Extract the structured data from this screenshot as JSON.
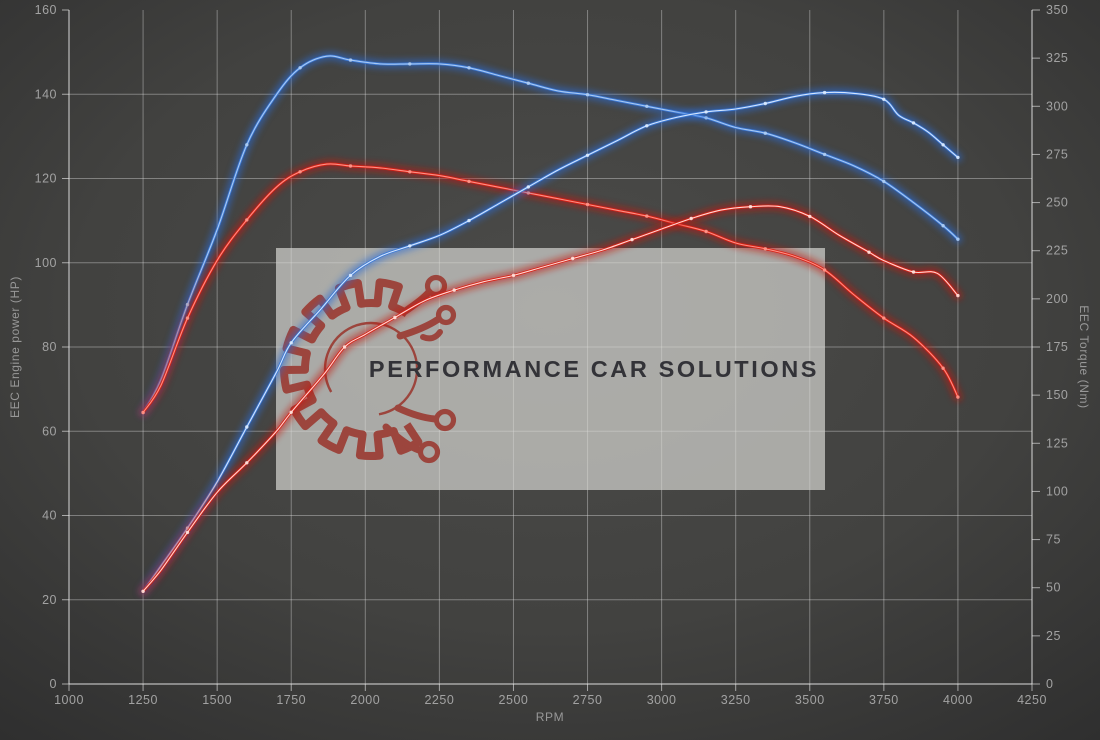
{
  "chart_data": {
    "type": "line",
    "title": "",
    "xlabel": "RPM",
    "grid": "on",
    "legend": "none",
    "axes": {
      "x": {
        "label": "RPM",
        "min": 1000,
        "max": 4250,
        "tick_step": 250,
        "ticks": [
          1000,
          1250,
          1500,
          1750,
          2000,
          2250,
          2500,
          2750,
          3000,
          3250,
          3500,
          3750,
          4000,
          4250
        ]
      },
      "left": {
        "label": "EEC Engine power (HP)",
        "min": 0,
        "max": 160,
        "tick_step": 20,
        "ticks": [
          0,
          20,
          40,
          60,
          80,
          100,
          120,
          140,
          160
        ]
      },
      "right": {
        "label": "EEC Torque (Nm)",
        "min": 0,
        "max": 350,
        "tick_step": 25,
        "ticks": [
          0,
          25,
          50,
          75,
          100,
          125,
          150,
          175,
          200,
          225,
          250,
          275,
          300,
          325,
          350
        ]
      }
    },
    "series": [
      {
        "id": "torque-blue",
        "kind": "torque",
        "axis": "right",
        "unit": "Nm",
        "color": "#3b79d6",
        "glow": "#2c6cd6",
        "core": "#aecdf4",
        "points": [
          [
            1250,
            141
          ],
          [
            1310,
            158
          ],
          [
            1400,
            197
          ],
          [
            1500,
            236
          ],
          [
            1600,
            280
          ],
          [
            1700,
            306
          ],
          [
            1780,
            320
          ],
          [
            1870,
            326
          ],
          [
            1950,
            324
          ],
          [
            2050,
            322
          ],
          [
            2150,
            322
          ],
          [
            2250,
            322
          ],
          [
            2350,
            320
          ],
          [
            2450,
            316
          ],
          [
            2550,
            312
          ],
          [
            2650,
            308
          ],
          [
            2750,
            306
          ],
          [
            2850,
            303
          ],
          [
            2950,
            300
          ],
          [
            3050,
            297
          ],
          [
            3150,
            294
          ],
          [
            3250,
            289
          ],
          [
            3350,
            286
          ],
          [
            3450,
            281
          ],
          [
            3550,
            275
          ],
          [
            3650,
            269
          ],
          [
            3750,
            261
          ],
          [
            3850,
            250
          ],
          [
            3950,
            238
          ],
          [
            4000,
            231
          ]
        ]
      },
      {
        "id": "torque-red",
        "kind": "torque",
        "axis": "right",
        "unit": "Nm",
        "color": "#da1f14",
        "glow": "#c41208",
        "core": "#ff968a",
        "points": [
          [
            1250,
            141
          ],
          [
            1310,
            155
          ],
          [
            1400,
            190
          ],
          [
            1500,
            220
          ],
          [
            1600,
            241
          ],
          [
            1700,
            258
          ],
          [
            1780,
            266
          ],
          [
            1870,
            270
          ],
          [
            1950,
            269
          ],
          [
            2050,
            268
          ],
          [
            2150,
            266
          ],
          [
            2250,
            264
          ],
          [
            2350,
            261
          ],
          [
            2450,
            258
          ],
          [
            2550,
            255
          ],
          [
            2650,
            252
          ],
          [
            2750,
            249
          ],
          [
            2850,
            246
          ],
          [
            2950,
            243
          ],
          [
            3050,
            239
          ],
          [
            3150,
            235
          ],
          [
            3250,
            229
          ],
          [
            3350,
            226
          ],
          [
            3450,
            222
          ],
          [
            3550,
            215
          ],
          [
            3650,
            202
          ],
          [
            3750,
            190
          ],
          [
            3850,
            180
          ],
          [
            3950,
            164
          ],
          [
            4000,
            149
          ]
        ]
      },
      {
        "id": "power-blue",
        "kind": "power",
        "axis": "left",
        "unit": "HP",
        "color": "#3b79d6",
        "glow": "#2c6cd6",
        "core": "#dcebff",
        "points": [
          [
            1250,
            22
          ],
          [
            1310,
            28
          ],
          [
            1400,
            37
          ],
          [
            1500,
            48
          ],
          [
            1600,
            61
          ],
          [
            1700,
            74
          ],
          [
            1750,
            81
          ],
          [
            1850,
            89
          ],
          [
            1950,
            97
          ],
          [
            2050,
            101.5
          ],
          [
            2150,
            104
          ],
          [
            2250,
            106.5
          ],
          [
            2350,
            110
          ],
          [
            2450,
            114
          ],
          [
            2550,
            118
          ],
          [
            2650,
            122
          ],
          [
            2750,
            125.5
          ],
          [
            2850,
            129
          ],
          [
            2950,
            132.5
          ],
          [
            3050,
            134.5
          ],
          [
            3150,
            135.8
          ],
          [
            3250,
            136.5
          ],
          [
            3350,
            137.8
          ],
          [
            3450,
            139.5
          ],
          [
            3550,
            140.4
          ],
          [
            3650,
            140.2
          ],
          [
            3750,
            138.8
          ],
          [
            3800,
            135
          ],
          [
            3850,
            133.2
          ],
          [
            3900,
            131
          ],
          [
            3950,
            128
          ],
          [
            4000,
            125
          ]
        ]
      },
      {
        "id": "power-red",
        "kind": "power",
        "axis": "left",
        "unit": "HP",
        "color": "#da1f14",
        "glow": "#c41208",
        "core": "#ffe2dd",
        "points": [
          [
            1250,
            22
          ],
          [
            1310,
            27
          ],
          [
            1400,
            36
          ],
          [
            1500,
            45.5
          ],
          [
            1600,
            52.5
          ],
          [
            1700,
            60
          ],
          [
            1750,
            64.5
          ],
          [
            1860,
            73.5
          ],
          [
            1930,
            80
          ],
          [
            2000,
            83
          ],
          [
            2100,
            87
          ],
          [
            2200,
            91
          ],
          [
            2300,
            93.5
          ],
          [
            2400,
            95.5
          ],
          [
            2500,
            97
          ],
          [
            2600,
            99
          ],
          [
            2700,
            101
          ],
          [
            2800,
            103
          ],
          [
            2900,
            105.5
          ],
          [
            3000,
            108
          ],
          [
            3100,
            110.5
          ],
          [
            3200,
            112.5
          ],
          [
            3300,
            113.3
          ],
          [
            3400,
            113.3
          ],
          [
            3500,
            111
          ],
          [
            3600,
            106.5
          ],
          [
            3700,
            102.5
          ],
          [
            3750,
            100.5
          ],
          [
            3850,
            97.8
          ],
          [
            3930,
            97.5
          ],
          [
            4000,
            92.2
          ]
        ]
      }
    ]
  },
  "watermark": {
    "text": "PERFORMANCE CAR SOLUTIONS",
    "logo_icon": "gear-circuit-icon",
    "box_color": "rgba(218,218,213,0.68)",
    "logo_color": "#9c453d",
    "text_color": "#333338"
  },
  "colors": {
    "background_center": "#4b4b49",
    "background_edge": "#2e2e2e",
    "grid": "rgba(225,225,225,0.40)",
    "axis": "rgba(235,235,235,0.62)",
    "tick_text": "#a2a2a2",
    "curve_blue": "#3b79d6",
    "curve_red": "#da1f14"
  }
}
